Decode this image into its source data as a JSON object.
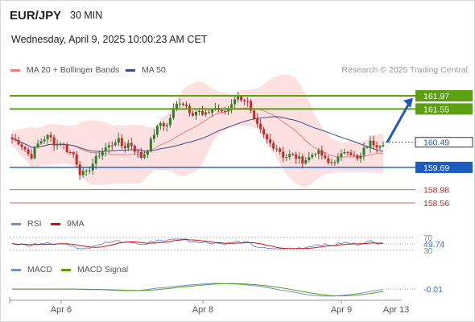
{
  "header": {
    "pair": "EUR/JPY",
    "timeframe": "30 MIN",
    "date": "Wednesday, April 9, 2025 10:00:23 AM CET",
    "copyright": "Research © 2025 Trading Central"
  },
  "legends": {
    "ma20": "MA 20 + Bollinger Bands",
    "ma50": "MA 50",
    "rsi": "RSI",
    "rsi_ma": "9MA",
    "macd": "MACD",
    "macd_signal": "MACD Signal"
  },
  "colors": {
    "candle_up": "#2e7d32",
    "candle_down": "#c62828",
    "ma20": "#f08080",
    "bollinger_fill": "#fde0e0",
    "ma50": "#3a4f8f",
    "resistance": "#5aa010",
    "support_blue": "#1e5bbf",
    "support_red": "#e05c5c",
    "arrow": "#1e5bbf",
    "rsi": "#6f8fd8",
    "rsi_ma": "#cc1111",
    "macd": "#6f8fd8",
    "macd_signal": "#5aa010"
  },
  "chart_data": {
    "type": "candlestick",
    "instrument": "EUR/JPY",
    "interval": "30 MIN",
    "x_ticks": [
      "Apr 6",
      "Apr 8",
      "Apr 9",
      "Apr 13"
    ],
    "levels": [
      {
        "value": 161.97,
        "label": "161.97",
        "kind": "resistance"
      },
      {
        "value": 161.55,
        "label": "161.55",
        "kind": "resistance"
      },
      {
        "value": 160.49,
        "label": "160.49",
        "kind": "last-price"
      },
      {
        "value": 159.69,
        "label": "159.69",
        "kind": "pivot"
      },
      {
        "value": 158.98,
        "label": "158.98",
        "kind": "support"
      },
      {
        "value": 158.56,
        "label": "158.56",
        "kind": "support"
      }
    ],
    "price_path": [
      160.6,
      160.5,
      160.3,
      160.0,
      160.4,
      160.6,
      160.7,
      160.4,
      160.5,
      160.2,
      160.1,
      159.5,
      159.5,
      159.8,
      160.1,
      160.3,
      160.4,
      160.6,
      160.3,
      160.5,
      160.2,
      160.0,
      160.3,
      160.8,
      161.1,
      161.0,
      161.5,
      161.8,
      161.7,
      161.4,
      161.5,
      161.3,
      161.5,
      161.6,
      161.4,
      161.6,
      161.9,
      161.9,
      161.8,
      161.2,
      160.9,
      160.6,
      160.4,
      160.3,
      160.0,
      160.1,
      160.0,
      159.9,
      160.0,
      160.2,
      160.1,
      159.8,
      159.9,
      160.0,
      160.3,
      160.1,
      159.9,
      160.3,
      160.5,
      160.4,
      160.49
    ],
    "rsi": {
      "value": 49.74,
      "label": "49.74",
      "levels": [
        70,
        30
      ]
    },
    "macd": {
      "value": -0.01,
      "label": "-0.01"
    }
  }
}
